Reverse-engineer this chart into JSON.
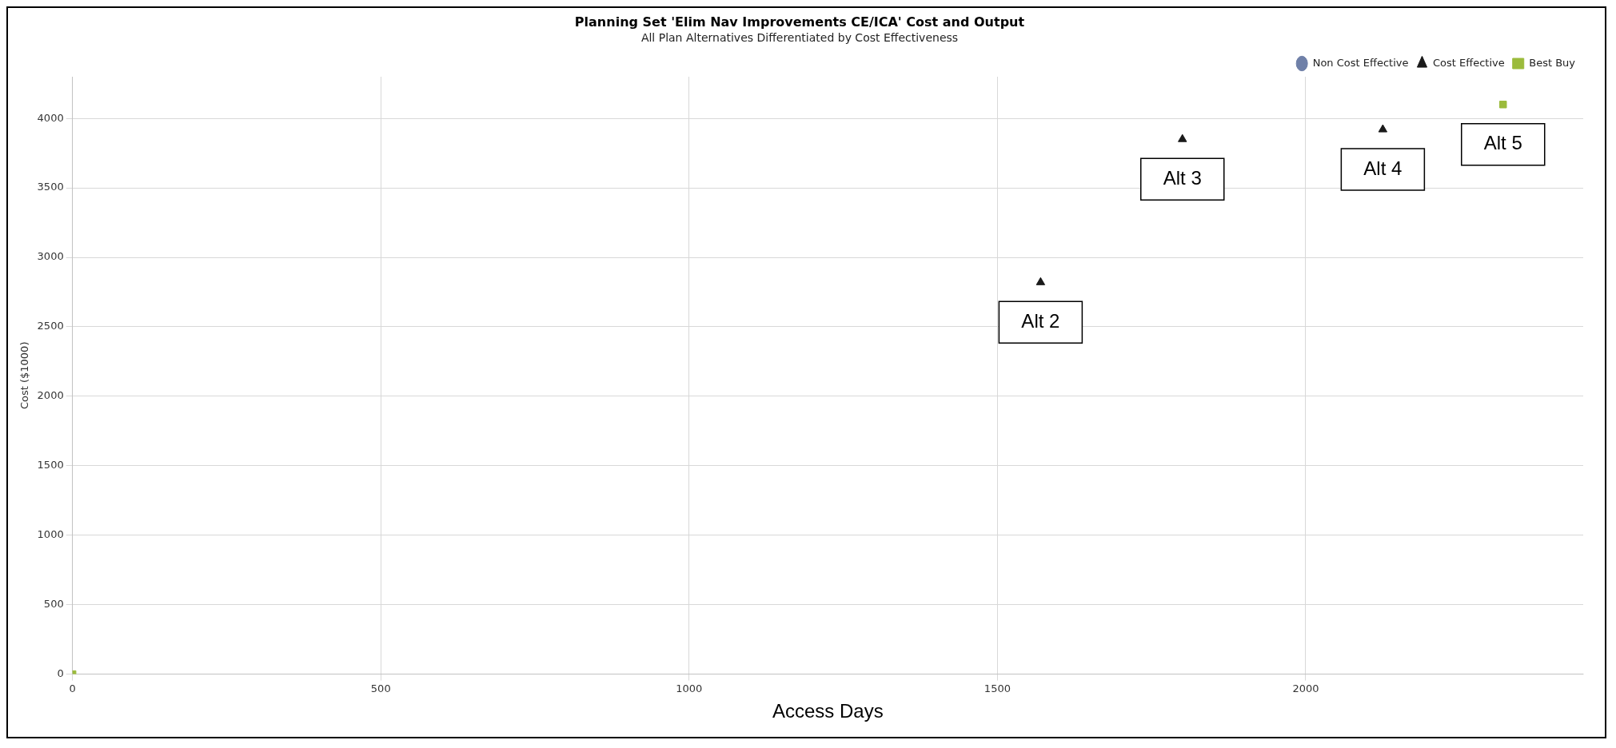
{
  "chart_data": {
    "type": "scatter",
    "title": "Planning Set 'Elim Nav Improvements CE/ICA' Cost and Output",
    "subtitle": "All Plan Alternatives Differentiated by Cost Effectiveness",
    "xlabel": "Access Days",
    "ylabel": "Cost ($1000)",
    "series": [
      {
        "name": "Non Cost Effective",
        "color": "#6f80a8",
        "marker": "circle"
      },
      {
        "name": "Cost Effective",
        "color": "#1a1a1a",
        "marker": "triangle",
        "x": [
          1570,
          1800,
          2125
        ],
        "values": [
          2820,
          3850,
          3920
        ]
      },
      {
        "name": "Best Buy",
        "color": "#9bbb3c",
        "marker": "square",
        "x": [
          0,
          2320
        ],
        "values": [
          0,
          4100
        ]
      }
    ],
    "annotations": [
      {
        "text": "Alt 2",
        "x": 1570,
        "y": 2820
      },
      {
        "text": "Alt 3",
        "x": 1800,
        "y": 3850
      },
      {
        "text": "Alt 4",
        "x": 2125,
        "y": 3920
      },
      {
        "text": "Alt 5",
        "x": 2320,
        "y": 4100
      }
    ],
    "xlim": [
      0,
      2450
    ],
    "xticks": [
      0,
      500,
      1000,
      1500,
      2000
    ],
    "ylim": [
      0,
      4300
    ],
    "yticks": [
      0,
      500,
      1000,
      1500,
      2000,
      2500,
      3000,
      3500,
      4000
    ],
    "grid": true,
    "legend": "top right"
  }
}
